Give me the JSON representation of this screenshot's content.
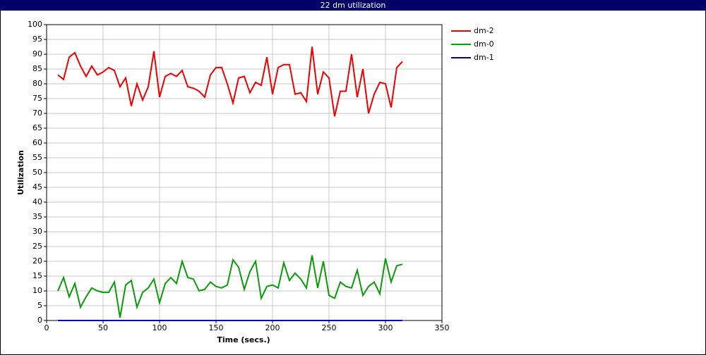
{
  "chart_data": {
    "type": "line",
    "title": "22 dm utilization",
    "x_label": "Time (secs.)",
    "y_label": "Utilization",
    "x": [
      10,
      15,
      20,
      25,
      30,
      35,
      40,
      45,
      50,
      55,
      60,
      65,
      70,
      75,
      80,
      85,
      90,
      95,
      100,
      105,
      110,
      115,
      120,
      125,
      130,
      135,
      140,
      145,
      150,
      155,
      160,
      165,
      170,
      175,
      180,
      185,
      190,
      195,
      200,
      205,
      210,
      215,
      220,
      225,
      230,
      235,
      240,
      245,
      250,
      255,
      260,
      265,
      270,
      275,
      280,
      285,
      290,
      295,
      300,
      305,
      310,
      315
    ],
    "series": [
      {
        "name": "dm-2",
        "color": "#ee0000",
        "values": [
          83,
          81.5,
          89,
          90.5,
          86,
          82.5,
          86,
          83,
          84,
          85.5,
          84.5,
          79,
          82,
          72.5,
          80,
          74.5,
          79,
          91,
          75.5,
          82.5,
          83.5,
          82.5,
          84.5,
          79,
          78.5,
          77.5,
          75.5,
          83,
          85.5,
          85.5,
          80,
          73.5,
          82,
          82.5,
          77,
          80.5,
          79.5,
          89,
          76.5,
          85.5,
          86.5,
          86.5,
          76.5,
          77,
          74,
          92.5,
          76.5,
          84,
          82,
          69,
          77.5,
          77.5,
          90,
          75.5,
          85,
          70,
          76.5,
          80.5,
          80,
          72,
          85.5,
          87.5
        ]
      },
      {
        "name": "dm-0",
        "color": "#0a9a0a",
        "values": [
          10,
          14.5,
          8,
          12.5,
          4.5,
          8,
          11,
          10,
          9.5,
          9.5,
          13,
          1,
          12,
          13.5,
          4.5,
          9.5,
          11,
          14,
          6,
          12.5,
          14.5,
          12.5,
          20,
          14.5,
          14,
          10,
          10.5,
          13,
          11.5,
          11,
          12,
          20.5,
          18,
          10.5,
          16.5,
          20,
          7.5,
          11.5,
          12,
          11,
          19.5,
          13.5,
          16,
          14,
          11,
          22,
          11,
          20,
          8.5,
          7.5,
          13,
          11.5,
          11,
          17,
          8.5,
          11.5,
          13,
          9,
          21,
          13,
          18.5,
          19
        ]
      },
      {
        "name": "dm-1",
        "color": "#0000aa",
        "values": [
          0,
          0,
          0,
          0,
          0,
          0,
          0,
          0,
          0,
          0,
          0,
          0,
          0,
          0,
          0,
          0,
          0,
          0,
          0,
          0,
          0,
          0,
          0,
          0,
          0,
          0,
          0,
          0,
          0,
          0,
          0,
          0,
          0,
          0,
          0,
          0,
          0,
          0,
          0,
          0,
          0,
          0,
          0,
          0,
          0,
          0,
          0,
          0,
          0,
          0,
          0,
          0,
          0,
          0,
          0,
          0,
          0,
          0,
          0,
          0,
          0,
          0
        ]
      }
    ],
    "xlim": [
      0,
      350
    ],
    "xticks": [
      0,
      50,
      100,
      150,
      200,
      250,
      300,
      350
    ],
    "ylim": [
      0,
      100
    ],
    "yticks": [
      0,
      5,
      10,
      15,
      20,
      25,
      30,
      35,
      40,
      45,
      50,
      55,
      60,
      65,
      70,
      75,
      80,
      85,
      90,
      95,
      100
    ],
    "grid": true,
    "legend": "right"
  }
}
